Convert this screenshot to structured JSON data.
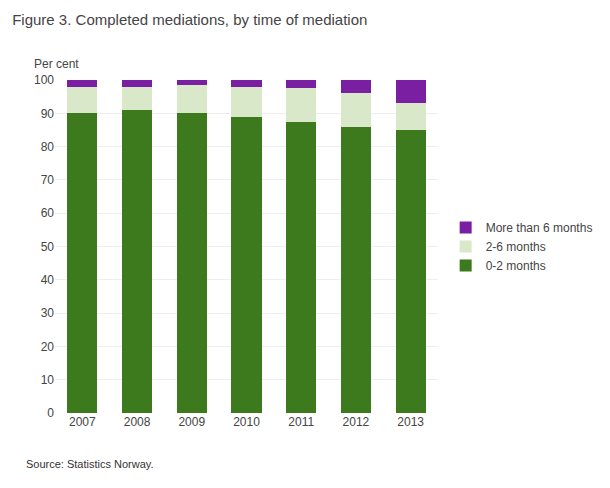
{
  "chart_data": {
    "type": "bar",
    "stacked": true,
    "title": "Figure 3. Completed mediations, by time of mediation",
    "ylabel": "Per cent",
    "annotations": [
      "Source: Statistics Norway."
    ],
    "categories": [
      "2007",
      "2008",
      "2009",
      "2010",
      "2011",
      "2012",
      "2013"
    ],
    "series": [
      {
        "name": "0-2 months",
        "color": "#3d7a1e",
        "values": [
          90,
          91,
          90,
          89,
          87.5,
          86,
          85
        ]
      },
      {
        "name": "2-6 months",
        "color": "#d9e8c8",
        "values": [
          8,
          7,
          8.5,
          9,
          10,
          10,
          8
        ]
      },
      {
        "name": "More than 6 months",
        "color": "#7b1fa2",
        "values": [
          2,
          2,
          1.5,
          2,
          2.5,
          4,
          7
        ]
      }
    ],
    "ylim": [
      0,
      100
    ],
    "yticks": [
      0,
      10,
      20,
      30,
      40,
      50,
      60,
      70,
      80,
      90,
      100
    ],
    "grid": true,
    "legend": "right"
  }
}
